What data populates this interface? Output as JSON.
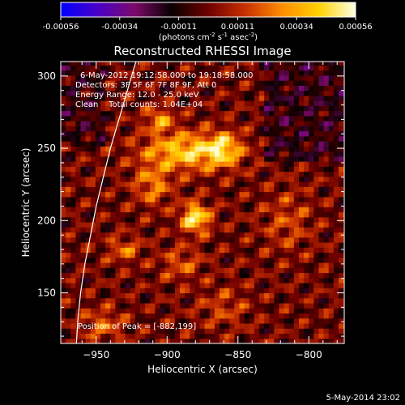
{
  "colorbar": {
    "ticks": [
      "-0.00056",
      "-0.00034",
      "-0.00011",
      "0.00011",
      "0.00034",
      "0.00056"
    ],
    "units_main": "(photons cm",
    "units_sup1": "-2",
    "units_mid": " s",
    "units_sup2": "-1",
    "units_asec": " asec",
    "units_sup3": "-2",
    "units_end": ")",
    "colors": [
      "#0000ff",
      "#4a00c8",
      "#7c0a6a",
      "#0a0000",
      "#6e0000",
      "#c83000",
      "#ff8c00",
      "#ffd200",
      "#ffffe6"
    ]
  },
  "title": "Reconstructed RHESSI Image",
  "annotations": {
    "time_range": "6-May-2012 19:12:58.000 to 19:18:58.000",
    "detectors": "Detectors: 3F 5F 6F 7F 8F 9F, Att 0",
    "energy": "Energy Range: 12.0 - 25.0 keV",
    "clean": "Clean    Total counts: 1.04E+04",
    "peak": "Position of Peak = [-882,199]"
  },
  "footer_date": "5-May-2014 23:02",
  "chart_data": {
    "type": "heatmap",
    "xlabel": "Heliocentric X (arcsec)",
    "ylabel": "Heliocentric Y (arcsec)",
    "xlim": [
      -975,
      -775
    ],
    "ylim": [
      115,
      310
    ],
    "x_ticks": [
      -950,
      -900,
      -850,
      -800
    ],
    "y_ticks": [
      150,
      200,
      250,
      300
    ],
    "x_tick_labels": [
      "−950",
      "−900",
      "−850",
      "−800"
    ],
    "y_tick_labels": [
      "150",
      "200",
      "250",
      "300"
    ],
    "value_range": [
      -0.00056,
      0.00056
    ],
    "peak": [
      -882,
      199
    ],
    "sources": [
      {
        "x": -880,
        "y": 202,
        "sx": 7,
        "sy": 7,
        "amp": 0.0005
      },
      {
        "x": -885,
        "y": 248,
        "sx": 22,
        "sy": 9,
        "amp": 0.00042
      },
      {
        "x": -905,
        "y": 270,
        "sx": 7,
        "sy": 6,
        "amp": 0.0003
      },
      {
        "x": -860,
        "y": 250,
        "sx": 8,
        "sy": 8,
        "amp": 0.0003
      },
      {
        "x": -910,
        "y": 225,
        "sx": 9,
        "sy": 10,
        "amp": 0.00025
      },
      {
        "x": -930,
        "y": 180,
        "sx": 8,
        "sy": 6,
        "amp": 0.00022
      },
      {
        "x": -890,
        "y": 170,
        "sx": 10,
        "sy": 8,
        "amp": 0.00018
      },
      {
        "x": -945,
        "y": 128,
        "sx": 10,
        "sy": 8,
        "amp": 0.0002
      },
      {
        "x": -815,
        "y": 200,
        "sx": 12,
        "sy": 15,
        "amp": 0.00015
      },
      {
        "x": -860,
        "y": 140,
        "sx": 12,
        "sy": 10,
        "amp": 0.00014
      }
    ],
    "limb": [
      [
        -922,
        310
      ],
      [
        -928,
        290
      ],
      [
        -934,
        270
      ],
      [
        -940,
        250
      ],
      [
        -945,
        230
      ],
      [
        -950,
        210
      ],
      [
        -954,
        190
      ],
      [
        -958,
        170
      ],
      [
        -961,
        150
      ],
      [
        -963,
        130
      ],
      [
        -964,
        115
      ]
    ]
  }
}
